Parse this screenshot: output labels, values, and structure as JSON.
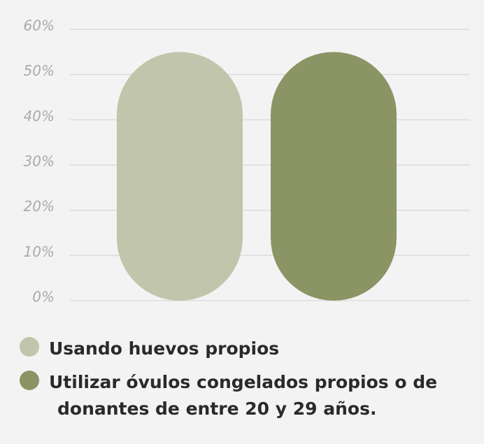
{
  "chart_data": {
    "type": "bar",
    "categories": [
      null
    ],
    "series": [
      {
        "name": "Usando huevos propios",
        "color": "#c0c5ab",
        "values": [
          55
        ]
      },
      {
        "name": "Utilizar óvulos congelados propios o de donantes de entre 20 y 29 años.",
        "color": "#8a9464",
        "values": [
          55
        ]
      }
    ],
    "ylim": [
      0,
      60
    ],
    "yticks": [
      {
        "value": 0,
        "label": "0%"
      },
      {
        "value": 10,
        "label": "10%"
      },
      {
        "value": 20,
        "label": "20%"
      },
      {
        "value": 30,
        "label": "30%"
      },
      {
        "value": 40,
        "label": "40%"
      },
      {
        "value": 50,
        "label": "50%"
      },
      {
        "value": 60,
        "label": "60%"
      }
    ],
    "grid": true
  }
}
